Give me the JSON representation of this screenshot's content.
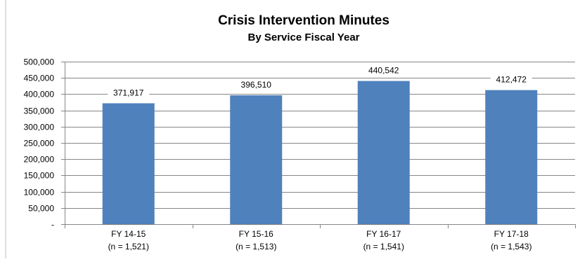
{
  "chart_data": {
    "type": "bar",
    "title": "Crisis Intervention Minutes",
    "subtitle": "By Service Fiscal Year",
    "categories": [
      "FY 14-15",
      "FY 15-16",
      "FY 16-17",
      "FY 17-18"
    ],
    "category_notes": [
      "(n = 1,521)",
      "(n = 1,513)",
      "(n = 1,541)",
      "(n = 1,543)"
    ],
    "values": [
      371917,
      396510,
      440542,
      412472
    ],
    "data_labels": [
      "371,917",
      "396,510",
      "440,542",
      "412,472"
    ],
    "ylim": [
      0,
      500000
    ],
    "y_ticks": [
      0,
      50000,
      100000,
      150000,
      200000,
      250000,
      300000,
      350000,
      400000,
      450000,
      500000
    ],
    "y_tick_labels": [
      "-",
      "50,000",
      "100,000",
      "150,000",
      "200,000",
      "250,000",
      "300,000",
      "350,000",
      "400,000",
      "450,000",
      "500,000"
    ],
    "grid": true,
    "legend": "none",
    "colors": {
      "bar": "#4F81BD",
      "grid": "#868686",
      "axis": "#868686"
    }
  }
}
